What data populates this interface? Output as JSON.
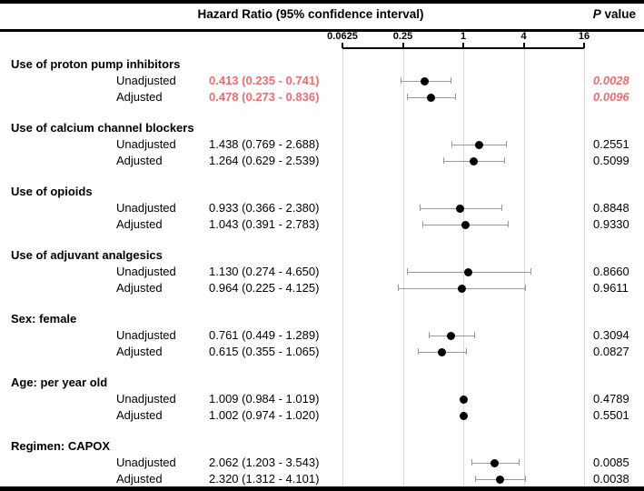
{
  "header": {
    "title": "Hazard Ratio (95% confidence interval)",
    "p_label_italic": "P",
    "p_label_rest": " value"
  },
  "colors": {
    "highlight_red": "#ef6b70",
    "marker": "#000000",
    "whisker": "#999999",
    "gridline": "#d9d9d9"
  },
  "chart_data": {
    "type": "forest",
    "x_axis": {
      "scale": "log",
      "range": [
        0.0625,
        16
      ],
      "ticks": [
        0.0625,
        0.25,
        1,
        4,
        16
      ],
      "tick_labels": [
        "0.0625",
        "0.25",
        "1",
        "4",
        "16"
      ]
    },
    "groups": [
      {
        "label": "Use of proton pump inhibitors",
        "rows": [
          {
            "label": "Unadjusted",
            "estimate": 0.413,
            "ci_low": 0.235,
            "ci_high": 0.741,
            "estimate_text": "0.413 (0.235 - 0.741)",
            "p_value": "0.0028",
            "highlighted": true
          },
          {
            "label": "Adjusted",
            "estimate": 0.478,
            "ci_low": 0.273,
            "ci_high": 0.836,
            "estimate_text": "0.478 (0.273 - 0.836)",
            "p_value": "0.0096",
            "highlighted": true
          }
        ]
      },
      {
        "label": "Use of calcium channel blockers",
        "rows": [
          {
            "label": "Unadjusted",
            "estimate": 1.438,
            "ci_low": 0.769,
            "ci_high": 2.688,
            "estimate_text": "1.438 (0.769 - 2.688)",
            "p_value": "0.2551",
            "highlighted": false
          },
          {
            "label": "Adjusted",
            "estimate": 1.264,
            "ci_low": 0.629,
            "ci_high": 2.539,
            "estimate_text": "1.264 (0.629 - 2.539)",
            "p_value": "0.5099",
            "highlighted": false
          }
        ]
      },
      {
        "label": "Use of opioids",
        "rows": [
          {
            "label": "Unadjusted",
            "estimate": 0.933,
            "ci_low": 0.366,
            "ci_high": 2.38,
            "estimate_text": "0.933 (0.366 - 2.380)",
            "p_value": "0.8848",
            "highlighted": false
          },
          {
            "label": "Adjusted",
            "estimate": 1.043,
            "ci_low": 0.391,
            "ci_high": 2.783,
            "estimate_text": "1.043 (0.391 - 2.783)",
            "p_value": "0.9330",
            "highlighted": false
          }
        ]
      },
      {
        "label": "Use of adjuvant analgesics",
        "rows": [
          {
            "label": "Unadjusted",
            "estimate": 1.13,
            "ci_low": 0.274,
            "ci_high": 4.65,
            "estimate_text": "1.130 (0.274 - 4.650)",
            "p_value": "0.8660",
            "highlighted": false
          },
          {
            "label": "Adjusted",
            "estimate": 0.964,
            "ci_low": 0.225,
            "ci_high": 4.125,
            "estimate_text": "0.964 (0.225 - 4.125)",
            "p_value": "0.9611",
            "highlighted": false
          }
        ]
      },
      {
        "label": "Sex: female",
        "rows": [
          {
            "label": "Unadjusted",
            "estimate": 0.761,
            "ci_low": 0.449,
            "ci_high": 1.289,
            "estimate_text": "0.761 (0.449 - 1.289)",
            "p_value": "0.3094",
            "highlighted": false
          },
          {
            "label": "Adjusted",
            "estimate": 0.615,
            "ci_low": 0.355,
            "ci_high": 1.065,
            "estimate_text": "0.615 (0.355 - 1.065)",
            "p_value": "0.0827",
            "highlighted": false
          }
        ]
      },
      {
        "label": "Age: per year old",
        "rows": [
          {
            "label": "Unadjusted",
            "estimate": 1.009,
            "ci_low": 0.984,
            "ci_high": 1.019,
            "estimate_text": "1.009 (0.984 - 1.019)",
            "p_value": "0.4789",
            "highlighted": false
          },
          {
            "label": "Adjusted",
            "estimate": 1.002,
            "ci_low": 0.974,
            "ci_high": 1.02,
            "estimate_text": "1.002 (0.974 - 1.020)",
            "p_value": "0.5501",
            "highlighted": false
          }
        ]
      },
      {
        "label": "Regimen: CAPOX",
        "rows": [
          {
            "label": "Unadjusted",
            "estimate": 2.062,
            "ci_low": 1.203,
            "ci_high": 3.543,
            "estimate_text": "2.062 (1.203 - 3.543)",
            "p_value": "0.0085",
            "highlighted": false
          },
          {
            "label": "Adjusted",
            "estimate": 2.32,
            "ci_low": 1.312,
            "ci_high": 4.101,
            "estimate_text": "2.320 (1.312 - 4.101)",
            "p_value": "0.0038",
            "highlighted": false
          }
        ]
      }
    ]
  }
}
